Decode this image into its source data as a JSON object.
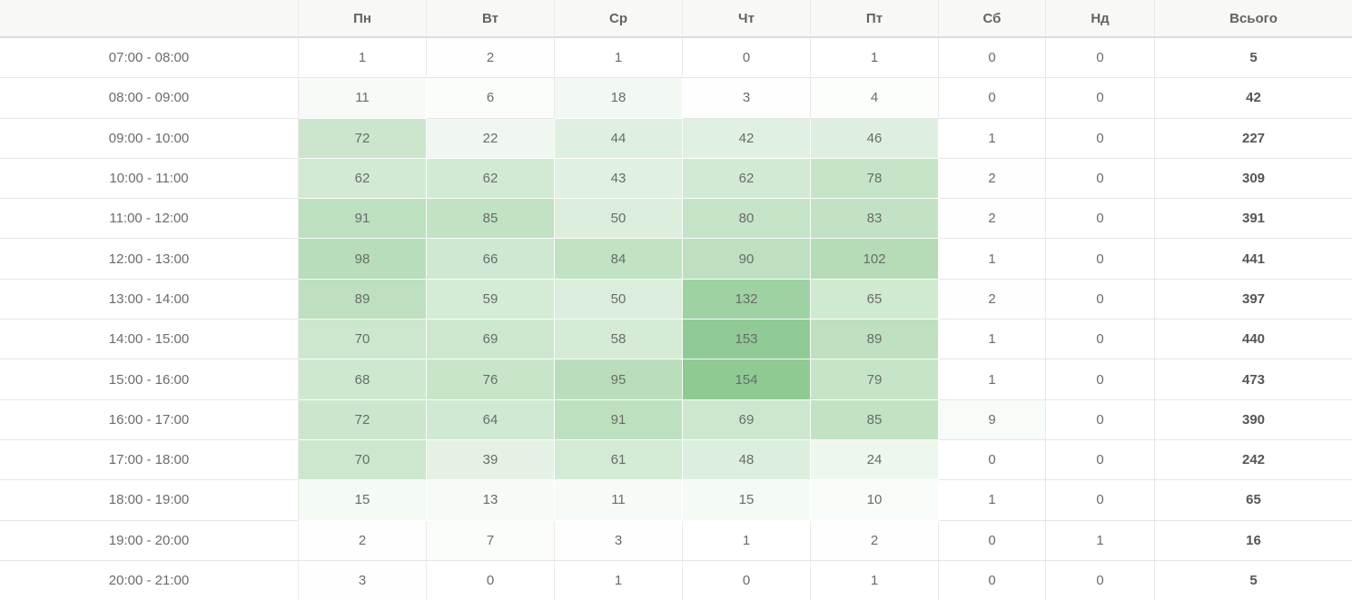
{
  "chart_data": {
    "type": "heatmap",
    "title": "",
    "columns": [
      "Пн",
      "Вт",
      "Ср",
      "Чт",
      "Пт",
      "Сб",
      "Нд"
    ],
    "total_label": "Всього",
    "corner_label": "",
    "rows": [
      {
        "time": "07:00 - 08:00",
        "values": [
          1,
          2,
          1,
          0,
          1,
          0,
          0
        ],
        "total": 5
      },
      {
        "time": "08:00 - 09:00",
        "values": [
          11,
          6,
          18,
          3,
          4,
          0,
          0
        ],
        "total": 42
      },
      {
        "time": "09:00 - 10:00",
        "values": [
          72,
          22,
          44,
          42,
          46,
          1,
          0
        ],
        "total": 227
      },
      {
        "time": "10:00 - 11:00",
        "values": [
          62,
          62,
          43,
          62,
          78,
          2,
          0
        ],
        "total": 309
      },
      {
        "time": "11:00 - 12:00",
        "values": [
          91,
          85,
          50,
          80,
          83,
          2,
          0
        ],
        "total": 391
      },
      {
        "time": "12:00 - 13:00",
        "values": [
          98,
          66,
          84,
          90,
          102,
          1,
          0
        ],
        "total": 441
      },
      {
        "time": "13:00 - 14:00",
        "values": [
          89,
          59,
          50,
          132,
          65,
          2,
          0
        ],
        "total": 397
      },
      {
        "time": "14:00 - 15:00",
        "values": [
          70,
          69,
          58,
          153,
          89,
          1,
          0
        ],
        "total": 440
      },
      {
        "time": "15:00 - 16:00",
        "values": [
          68,
          76,
          95,
          154,
          79,
          1,
          0
        ],
        "total": 473
      },
      {
        "time": "16:00 - 17:00",
        "values": [
          72,
          64,
          91,
          69,
          85,
          9,
          0
        ],
        "total": 390
      },
      {
        "time": "17:00 - 18:00",
        "values": [
          70,
          39,
          61,
          48,
          24,
          0,
          0
        ],
        "total": 242
      },
      {
        "time": "18:00 - 19:00",
        "values": [
          15,
          13,
          11,
          15,
          10,
          1,
          0
        ],
        "total": 65
      },
      {
        "time": "19:00 - 20:00",
        "values": [
          2,
          7,
          3,
          1,
          2,
          0,
          1
        ],
        "total": 16
      },
      {
        "time": "20:00 - 21:00",
        "values": [
          3,
          0,
          1,
          0,
          1,
          0,
          0
        ],
        "total": 5
      }
    ],
    "value_range": [
      0,
      154
    ],
    "legend_position": "none",
    "grid": true,
    "colors": {
      "heat_min": "#ffffff",
      "heat_max": "#8fca93",
      "header_bg": "#f8f8f6",
      "header_border": "#dcdcda",
      "grid_line": "#e6e6e4",
      "text": "#6b6b6b",
      "header_text": "#636363",
      "total_text": "#565656"
    }
  }
}
